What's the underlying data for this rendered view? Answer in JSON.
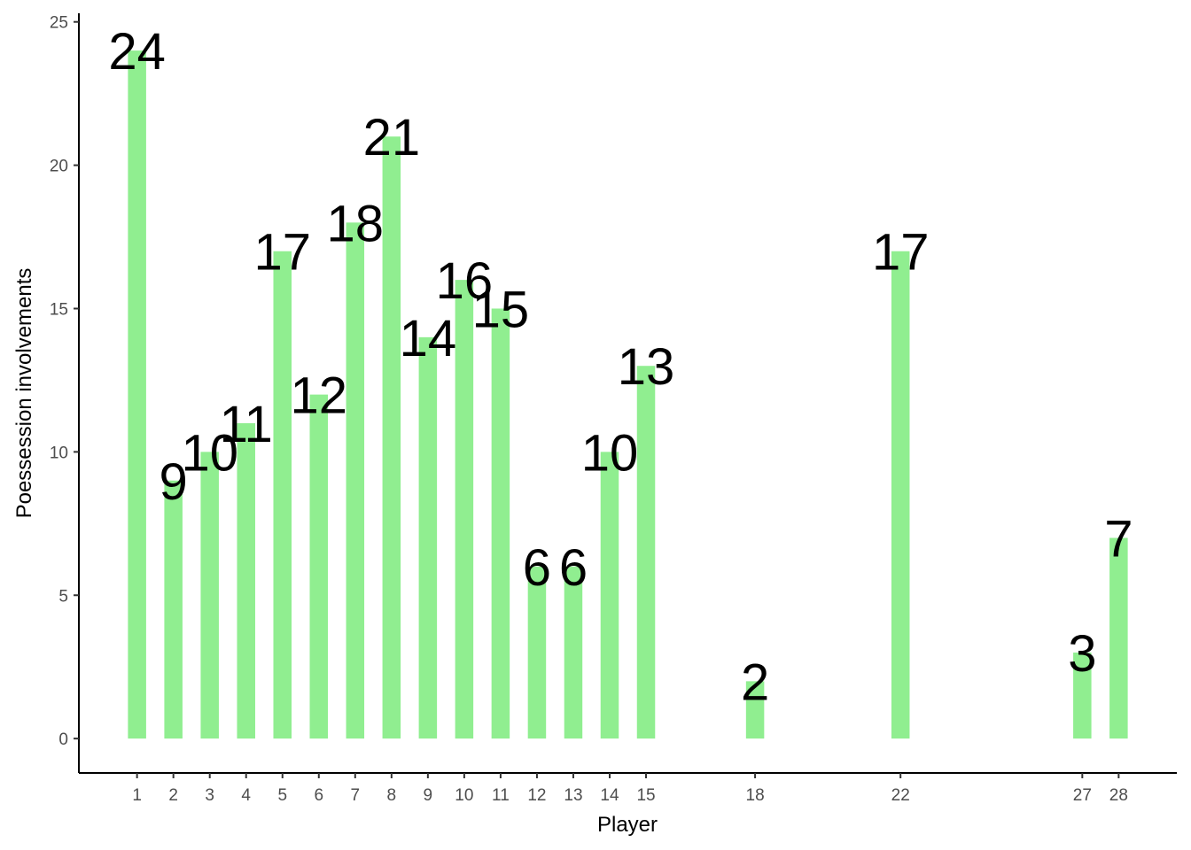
{
  "chart_data": {
    "type": "bar",
    "xlabel": "Player",
    "ylabel": "Poessession involvements",
    "x": [
      1,
      2,
      3,
      4,
      5,
      6,
      7,
      8,
      9,
      10,
      11,
      12,
      13,
      14,
      15,
      18,
      22,
      27,
      28
    ],
    "values": [
      24,
      9,
      10,
      11,
      17,
      12,
      18,
      21,
      14,
      16,
      15,
      6,
      6,
      10,
      13,
      2,
      17,
      3,
      7
    ],
    "x_ticks": [
      1,
      2,
      3,
      4,
      5,
      6,
      7,
      8,
      9,
      10,
      11,
      12,
      13,
      14,
      15,
      18,
      22,
      27,
      28
    ],
    "y_ticks": [
      0,
      5,
      10,
      15,
      20,
      25
    ],
    "xlim": [
      -0.6,
      29.6
    ],
    "ylim": [
      -1.2,
      25.3
    ],
    "bar_color": "#90ee90",
    "grid": false,
    "legend": "none"
  }
}
